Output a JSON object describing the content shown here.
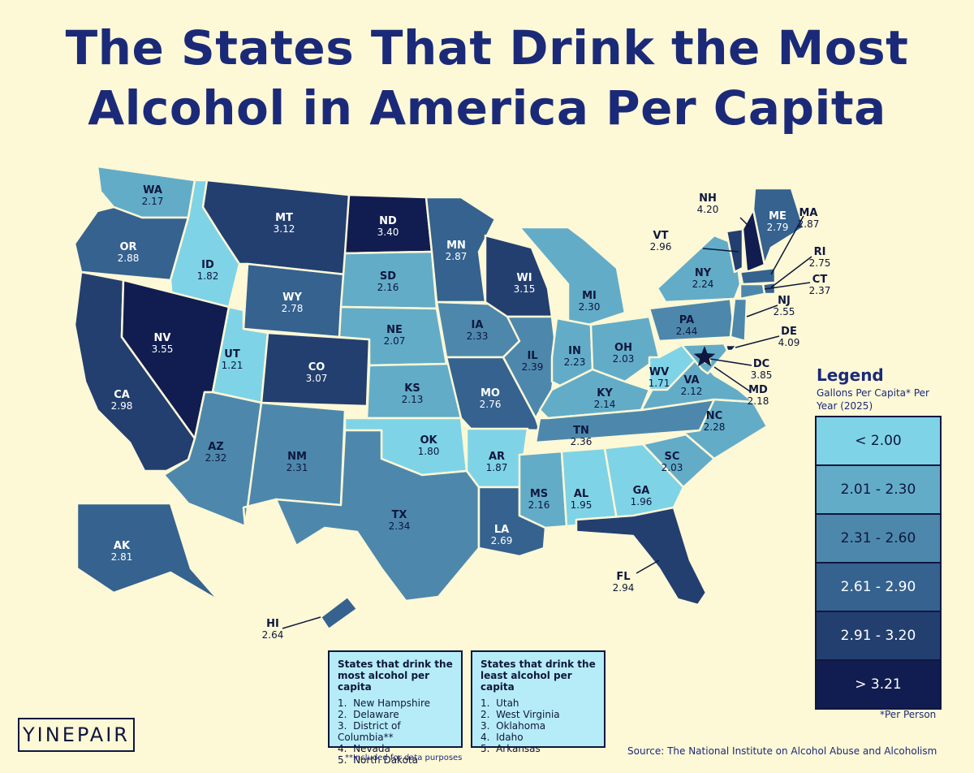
{
  "title": {
    "line1": "The States That Drink the Most",
    "line2": "Alcohol in America Per Capita"
  },
  "legend": {
    "title": "Legend",
    "subtitle": "Gallons Per Capita* Per Year (2025)",
    "bins": [
      {
        "label": "< 2.00",
        "color": "#7fd3e6"
      },
      {
        "label": "2.01 - 2.30",
        "color": "#63acc8"
      },
      {
        "label": "2.31 - 2.60",
        "color": "#4d88ac"
      },
      {
        "label": "2.61 - 2.90",
        "color": "#35628f"
      },
      {
        "label": "2.91 - 3.20",
        "color": "#233f70"
      },
      {
        "label": "> 3.21",
        "color": "#111d50"
      }
    ],
    "footnote": "*Per Person"
  },
  "states": [
    {
      "code": "WA",
      "value": "2.17",
      "bin": 1
    },
    {
      "code": "OR",
      "value": "2.88",
      "bin": 3
    },
    {
      "code": "CA",
      "value": "2.98",
      "bin": 4
    },
    {
      "code": "ID",
      "value": "1.82",
      "bin": 0
    },
    {
      "code": "NV",
      "value": "3.55",
      "bin": 5
    },
    {
      "code": "MT",
      "value": "3.12",
      "bin": 4
    },
    {
      "code": "WY",
      "value": "2.78",
      "bin": 3
    },
    {
      "code": "UT",
      "value": "1.21",
      "bin": 0
    },
    {
      "code": "AZ",
      "value": "2.32",
      "bin": 2
    },
    {
      "code": "CO",
      "value": "3.07",
      "bin": 4
    },
    {
      "code": "NM",
      "value": "2.31",
      "bin": 2
    },
    {
      "code": "ND",
      "value": "3.40",
      "bin": 5
    },
    {
      "code": "SD",
      "value": "2.16",
      "bin": 1
    },
    {
      "code": "NE",
      "value": "2.07",
      "bin": 1
    },
    {
      "code": "KS",
      "value": "2.13",
      "bin": 1
    },
    {
      "code": "OK",
      "value": "1.80",
      "bin": 0
    },
    {
      "code": "TX",
      "value": "2.34",
      "bin": 2
    },
    {
      "code": "MN",
      "value": "2.87",
      "bin": 3
    },
    {
      "code": "IA",
      "value": "2.33",
      "bin": 2
    },
    {
      "code": "MO",
      "value": "2.76",
      "bin": 3
    },
    {
      "code": "AR",
      "value": "1.87",
      "bin": 0
    },
    {
      "code": "LA",
      "value": "2.69",
      "bin": 3
    },
    {
      "code": "WI",
      "value": "3.15",
      "bin": 4
    },
    {
      "code": "IL",
      "value": "2.39",
      "bin": 2
    },
    {
      "code": "MI",
      "value": "2.30",
      "bin": 1
    },
    {
      "code": "IN",
      "value": "2.23",
      "bin": 1
    },
    {
      "code": "OH",
      "value": "2.03",
      "bin": 1
    },
    {
      "code": "KY",
      "value": "2.14",
      "bin": 1
    },
    {
      "code": "TN",
      "value": "2.36",
      "bin": 2
    },
    {
      "code": "MS",
      "value": "2.16",
      "bin": 1
    },
    {
      "code": "AL",
      "value": "1.95",
      "bin": 0
    },
    {
      "code": "GA",
      "value": "1.96",
      "bin": 0
    },
    {
      "code": "FL",
      "value": "2.94",
      "bin": 4
    },
    {
      "code": "SC",
      "value": "2.03",
      "bin": 1
    },
    {
      "code": "NC",
      "value": "2.28",
      "bin": 1
    },
    {
      "code": "VA",
      "value": "2.12",
      "bin": 1
    },
    {
      "code": "WV",
      "value": "1.71",
      "bin": 0
    },
    {
      "code": "PA",
      "value": "2.44",
      "bin": 2
    },
    {
      "code": "NY",
      "value": "2.24",
      "bin": 1
    },
    {
      "code": "VT",
      "value": "2.96",
      "bin": 4
    },
    {
      "code": "NH",
      "value": "4.20",
      "bin": 5
    },
    {
      "code": "ME",
      "value": "2.79",
      "bin": 3
    },
    {
      "code": "MA",
      "value": "2.87",
      "bin": 3
    },
    {
      "code": "RI",
      "value": "2.75",
      "bin": 3
    },
    {
      "code": "CT",
      "value": "2.37",
      "bin": 2
    },
    {
      "code": "NJ",
      "value": "2.55",
      "bin": 2
    },
    {
      "code": "DE",
      "value": "4.09",
      "bin": 5
    },
    {
      "code": "MD",
      "value": "2.18",
      "bin": 1
    },
    {
      "code": "DC",
      "value": "3.85",
      "bin": 5
    },
    {
      "code": "AK",
      "value": "2.81",
      "bin": 3
    },
    {
      "code": "HI",
      "value": "2.64",
      "bin": 3
    }
  ],
  "most_list": {
    "heading": "States that drink the most alcohol per capita",
    "items": [
      "New Hampshire",
      "Delaware",
      "District of Columbia**",
      "Nevada",
      "North Dakota"
    ]
  },
  "least_list": {
    "heading": "States that drink the least alcohol per capita",
    "items": [
      "Utah",
      "West Virginia",
      "Oklahoma",
      "Idaho",
      "Arkansas"
    ]
  },
  "footnote": "**Included for data purposes",
  "source": "Source: The National Institute on Alcohol Abuse and Alcoholism",
  "logo": "YINEPAIR"
}
